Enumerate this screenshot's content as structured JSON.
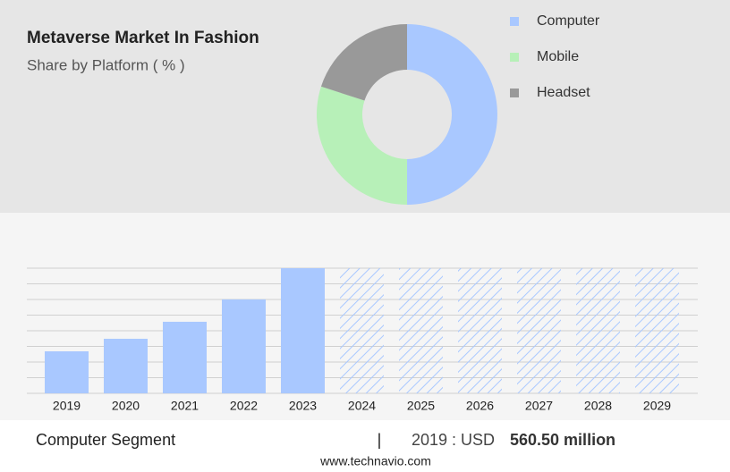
{
  "chart_data": [
    {
      "type": "pie",
      "title": "Metaverse Market In Fashion",
      "subtitle": "Share by Platform ( % )",
      "categories": [
        "Computer",
        "Mobile",
        "Headset"
      ],
      "values": [
        50,
        30,
        20
      ],
      "colors": [
        "#a9c8ff",
        "#b7f0b8",
        "#999999"
      ],
      "legend": "right"
    },
    {
      "type": "bar",
      "categories": [
        "2019",
        "2020",
        "2021",
        "2022",
        "2023",
        "2024",
        "2025",
        "2026",
        "2027",
        "2028",
        "2029"
      ],
      "values": [
        560.5,
        728,
        955,
        1253,
        1670,
        null,
        null,
        null,
        null,
        null,
        null
      ],
      "color": "#a9c8ff",
      "ylim": [
        0,
        1670
      ],
      "grid": true
    }
  ],
  "footer": {
    "segment": "Computer Segment",
    "separator": "|",
    "year_label": "2019 : USD",
    "value_label": "560.50 million",
    "source": "www.technavio.com"
  }
}
